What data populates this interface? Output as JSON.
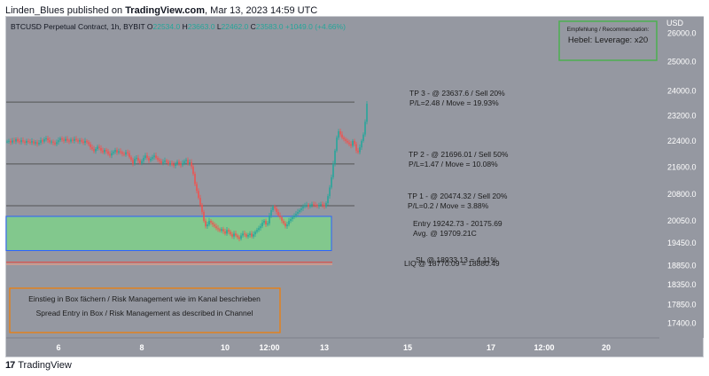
{
  "header": {
    "author": "Linden_Blues",
    "published_on": "published on",
    "site": "TradingView.com",
    "date": ", Mar 13, 2023 14:59 UTC"
  },
  "legend": {
    "symbol": "BTCUSD Perpetual Contract, 1h, BYBIT",
    "o_label": "O",
    "o_value": "22534.0",
    "h_label": "H",
    "h_value": "23663.0",
    "l_label": "L",
    "l_value": "22462.0",
    "c_label": "C",
    "c_value": "23583.0",
    "change": "+1049.0 (+4.66%)"
  },
  "recommendation": {
    "title": "Empfehlung / Recommendation:",
    "value": "Hebel: Leverage: x20",
    "border_color": "#4caf50"
  },
  "annotations": {
    "tp3_line1": "TP 3 - @ 23637.6 / Sell 20%",
    "tp3_line2": "P/L=2.48 / Move = 19.93%",
    "tp2_line1": "TP 2 - @ 21696.01 / Sell 50%",
    "tp2_line2": "P/L=1.47 / Move = 10.08%",
    "tp1_line1": "TP 1 - @ 20474.32 / Sell 20%",
    "tp1_line2": "P/L=0.2 / Move = 3.88%",
    "entry_line1": "Entry 19242.73 - 20175.69",
    "entry_line2": "Avg. @ 19709.21C",
    "sl_text": "SL @ 18933.13 = 4.11%",
    "liq_text": "LIQ @ 18770.09 = 18880.49"
  },
  "info_box": {
    "line1": "Einstieg in Box fächern / Risk Management wie im Kanal beschrieben",
    "line2": "Spread Entry in Box / Risk Management as described in Channel",
    "border_color": "#f57c00"
  },
  "footer": {
    "brand": "TradingView",
    "logo": "17"
  },
  "colors": {
    "bg": "#9598a1",
    "up": "#26a69a",
    "down": "#ef5350",
    "entry_fill": "#7fd08a",
    "entry_border": "#2962ff",
    "level_line": "#555555",
    "stop_line": "#f44336",
    "text": "#1c1c1c"
  },
  "chart_data": {
    "type": "candlestick",
    "title": "BTCUSD Perpetual Contract, 1h, BYBIT",
    "currency": "USD",
    "y_ticks": [
      "26000.0",
      "25000.0",
      "24000.0",
      "23200.0",
      "22400.0",
      "21600.0",
      "20800.0",
      "20050.0",
      "19450.0",
      "18850.0",
      "18350.0",
      "17850.0",
      "17400.0"
    ],
    "x_ticks": [
      "6",
      "8",
      "10",
      "12:00",
      "13",
      "15",
      "17",
      "12:00",
      "20"
    ],
    "x_tick_index": [
      29,
      76,
      123,
      148,
      179,
      226,
      273,
      303,
      338
    ],
    "y_scale": "log",
    "ylim": [
      17050,
      26600
    ],
    "levels": {
      "tp3": 23637.6,
      "tp2": 21696.01,
      "tp1": 20474.32,
      "sl": 18933.13,
      "liq": 18880.49
    },
    "entry_zone": {
      "low": 19242.73,
      "high": 20175.69,
      "avg": 19709.21,
      "start_index": 0,
      "end_index": 183
    },
    "close_series": [
      22380,
      22400,
      22350,
      22410,
      22380,
      22450,
      22390,
      22360,
      22420,
      22380,
      22340,
      22400,
      22370,
      22350,
      22390,
      22320,
      22360,
      22300,
      22340,
      22420,
      22380,
      22450,
      22480,
      22420,
      22360,
      22380,
      22340,
      22300,
      22360,
      22420,
      22480,
      22440,
      22400,
      22460,
      22410,
      22380,
      22440,
      22400,
      22460,
      22420,
      22380,
      22420,
      22380,
      22340,
      22400,
      22360,
      22300,
      22200,
      22150,
      22080,
      22150,
      22220,
      22180,
      22100,
      22050,
      22120,
      22080,
      22000,
      21950,
      22020,
      22060,
      22120,
      22040,
      22080,
      22050,
      22000,
      21980,
      22050,
      22020,
      21900,
      21820,
      21700,
      21850,
      21880,
      21800,
      21720,
      21780,
      21880,
      21950,
      21880,
      21800,
      21850,
      21900,
      21950,
      21880,
      21820,
      21780,
      21720,
      21760,
      21800,
      21760,
      21700,
      21720,
      21680,
      21640,
      21700,
      21760,
      21700,
      21660,
      21720,
      21780,
      21820,
      21700,
      21750,
      21620,
      21400,
      21100,
      20900,
      20700,
      20500,
      20300,
      20050,
      19900,
      19950,
      20050,
      20000,
      19950,
      19900,
      19850,
      19820,
      19780,
      19820,
      19760,
      19700,
      19800,
      19750,
      19680,
      19620,
      19700,
      19650,
      19600,
      19560,
      19650,
      19700,
      19680,
      19620,
      19660,
      19700,
      19620,
      19680,
      19750,
      19800,
      19850,
      19900,
      20000,
      20050,
      19950,
      19980,
      20200,
      20350,
      20450,
      20400,
      20300,
      20200,
      20150,
      20050,
      19980,
      19900,
      19950,
      20050,
      20100,
      20150,
      20200,
      20250,
      20300,
      20350,
      20400,
      20450,
      20480,
      20500,
      20450,
      20480,
      20520,
      20500,
      20480,
      20460,
      20500,
      20520,
      20480,
      20450,
      20550,
      20750,
      21000,
      21300,
      21700,
      22100,
      22500,
      22700,
      22600,
      22500,
      22450,
      22400,
      22350,
      22300,
      22250,
      22400,
      22300,
      22100,
      22050,
      22200,
      22400,
      22600,
      23000,
      23583
    ]
  }
}
